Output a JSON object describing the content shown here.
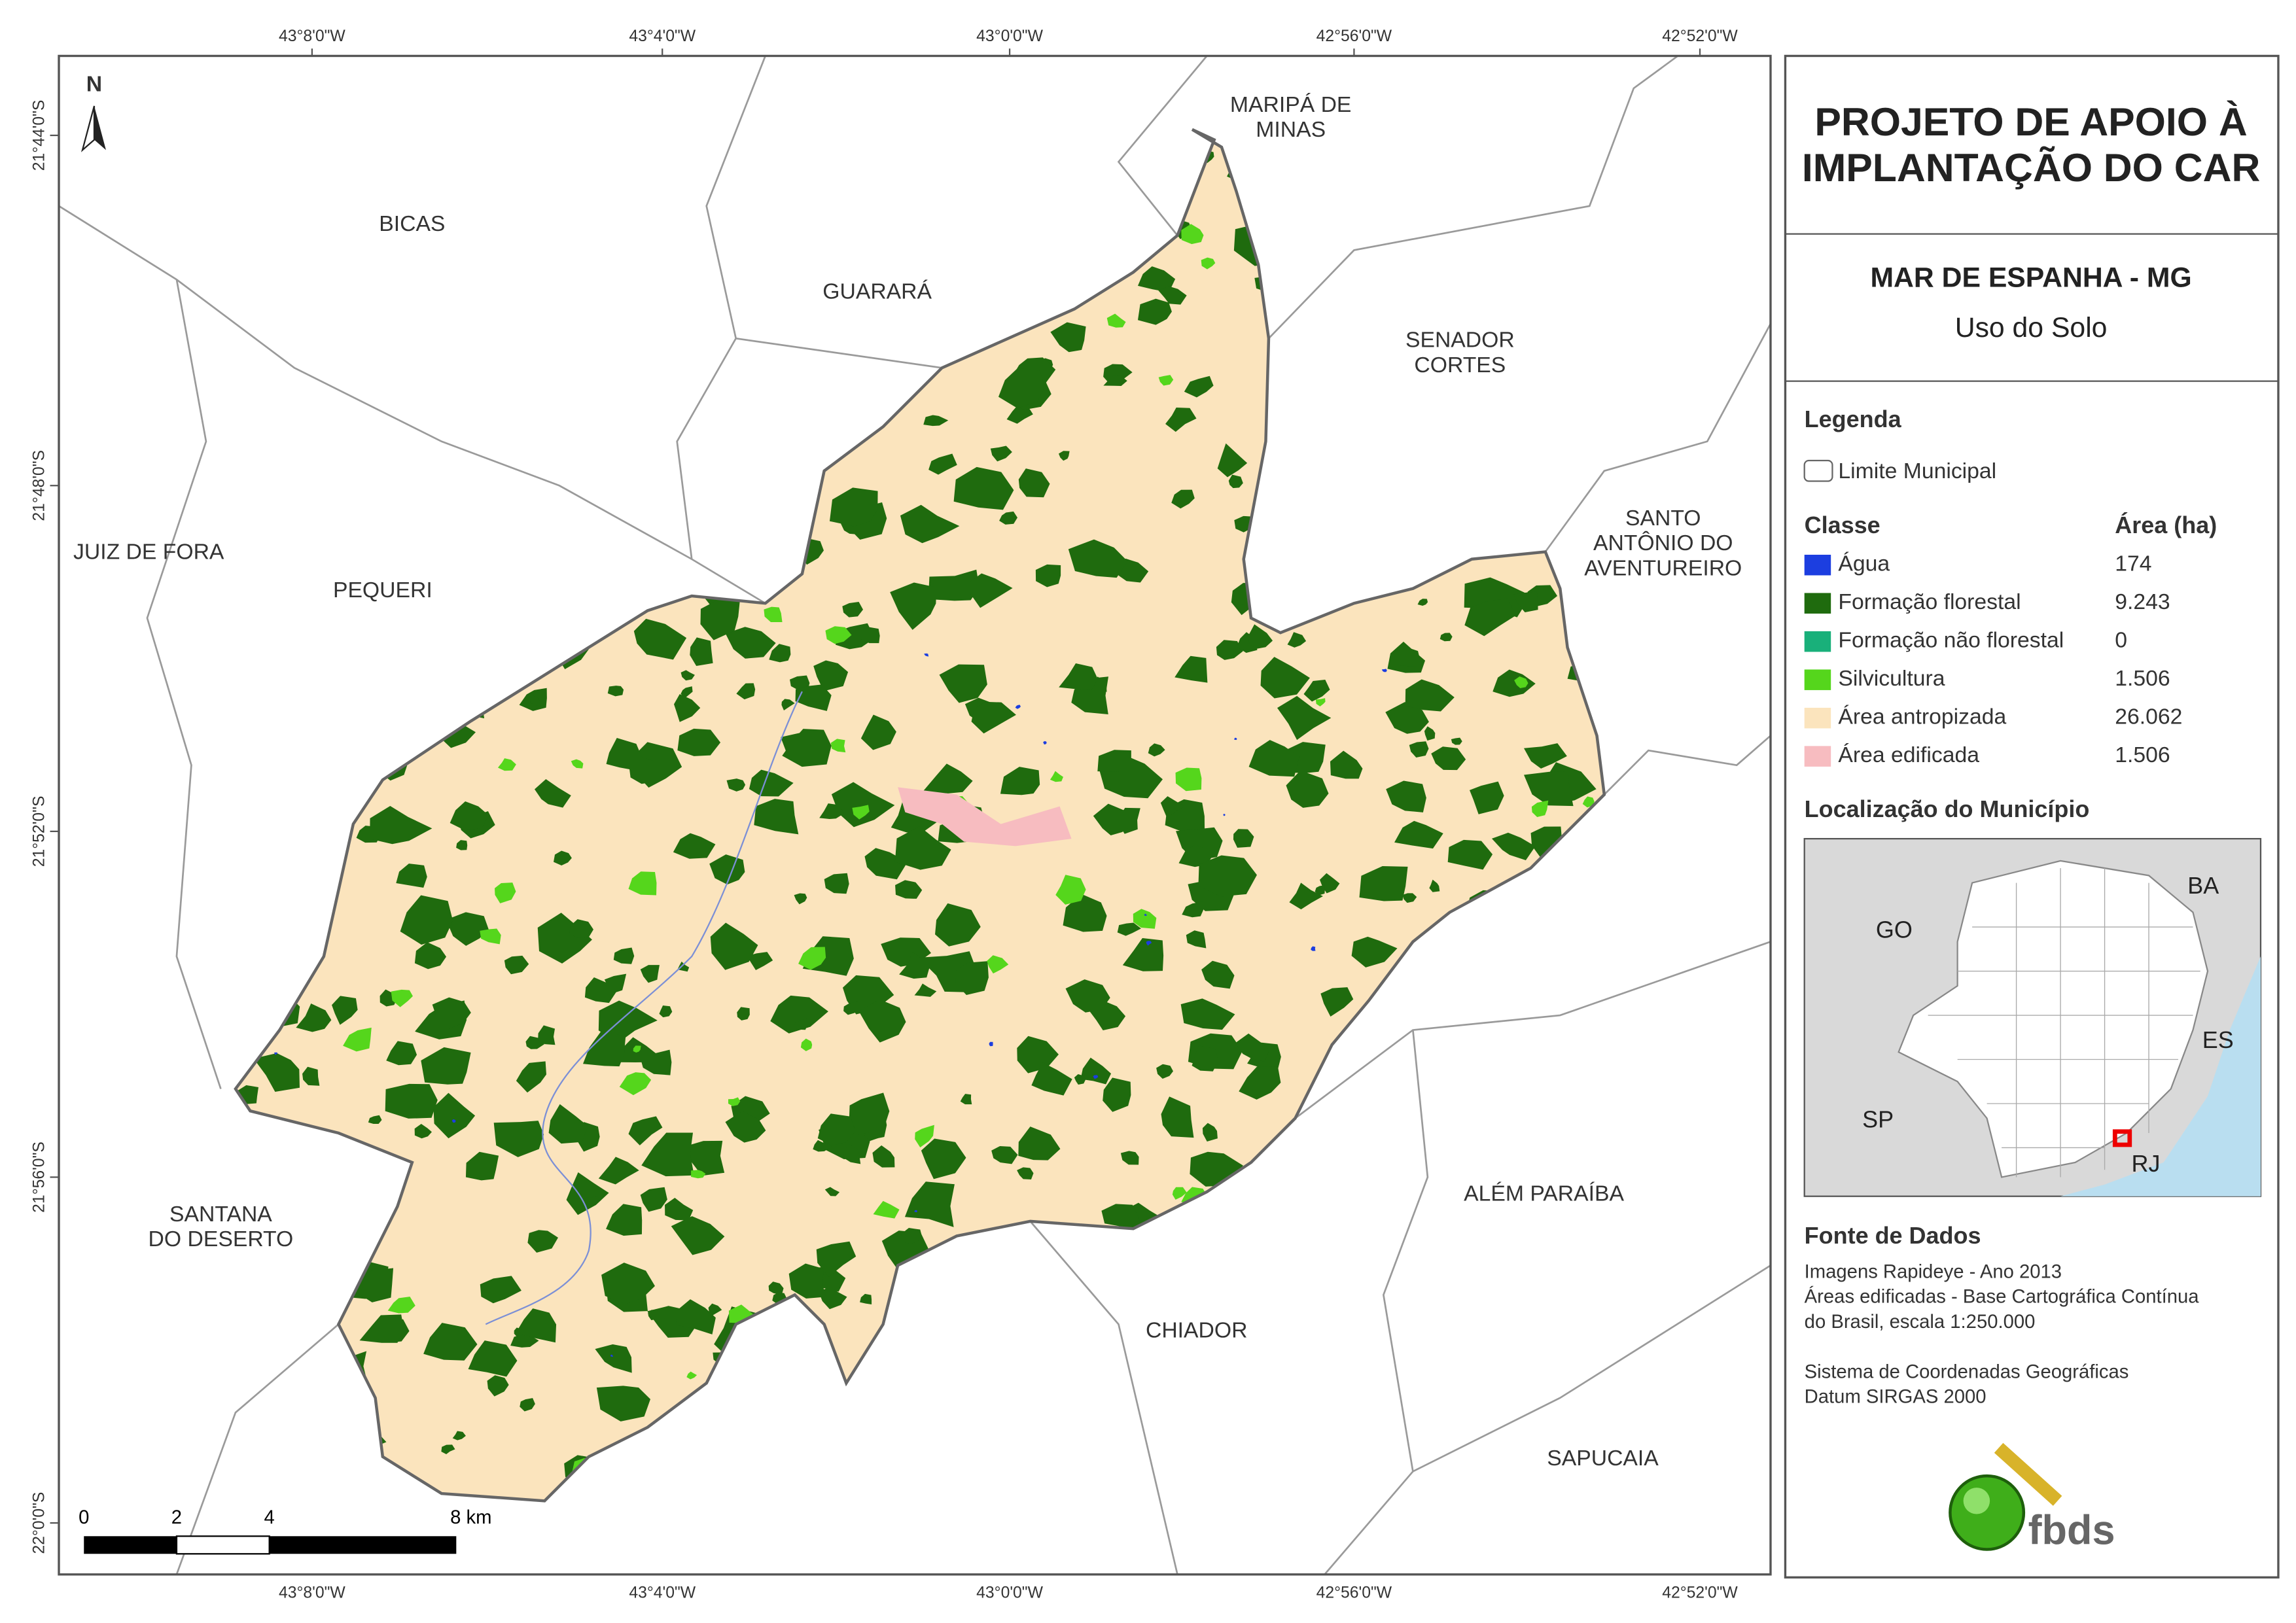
{
  "header": {
    "title_lines": [
      "PROJETO DE APOIO À",
      "IMPLANTAÇÃO DO CAR"
    ],
    "municipality": "MAR DE ESPANHA - MG",
    "theme": "Uso do Solo"
  },
  "legend": {
    "title": "Legenda",
    "boundary": "Limite Municipal",
    "class_header": "Classe",
    "area_header": "Área (ha)",
    "classes": [
      {
        "name": "Água",
        "area": "174",
        "color": "#1c3ee0"
      },
      {
        "name": "Formação florestal",
        "area": "9.243",
        "color": "#1f6b0e"
      },
      {
        "name": "Formação não florestal",
        "area": "0",
        "color": "#19b07a"
      },
      {
        "name": "Silvicultura",
        "area": "1.506",
        "color": "#55d61c"
      },
      {
        "name": "Área antropizada",
        "area": "26.062",
        "color": "#fbe4bd"
      },
      {
        "name": "Área edificada",
        "area": "1.506",
        "color": "#f7bcc0"
      }
    ]
  },
  "location": {
    "title": "Localização do Município",
    "states": [
      "GO",
      "BA",
      "ES",
      "SP",
      "RJ"
    ]
  },
  "sources": {
    "title": "Fonte de Dados",
    "lines": [
      "Imagens Rapideye - Ano 2013",
      "Áreas edificadas - Base Cartográfica Contínua",
      "do Brasil, escala 1:250.000",
      "Sistema de Coordenadas Geográficas",
      "Datum SIRGAS 2000"
    ]
  },
  "map": {
    "north": "N",
    "longitudes": [
      "43°8'0\"W",
      "43°4'0\"W",
      "43°0'0\"W",
      "42°56'0\"W",
      "42°52'0\"W"
    ],
    "latitudes": [
      "21°44'0\"S",
      "21°48'0\"S",
      "21°52'0\"S",
      "21°56'0\"S",
      "22°0'0\"S"
    ],
    "neighbors": [
      [
        "MARIPÁ DE",
        "MINAS"
      ],
      [
        "BICAS"
      ],
      [
        "GUARARÁ"
      ],
      [
        "SENADOR",
        "CORTES"
      ],
      [
        "SANTO",
        "ANTÔNIO DO",
        "AVENTUREIRO"
      ],
      [
        "JUIZ DE FORA"
      ],
      [
        "PEQUERI"
      ],
      [
        "SANTANA",
        "DO DESERTO"
      ],
      [
        "ALÉM PARAÍBA"
      ],
      [
        "CHIADOR"
      ],
      [
        "SAPUCAIA"
      ]
    ],
    "scale_labels": [
      "0",
      "2",
      "4",
      "8 km"
    ]
  },
  "logo": "fbds"
}
